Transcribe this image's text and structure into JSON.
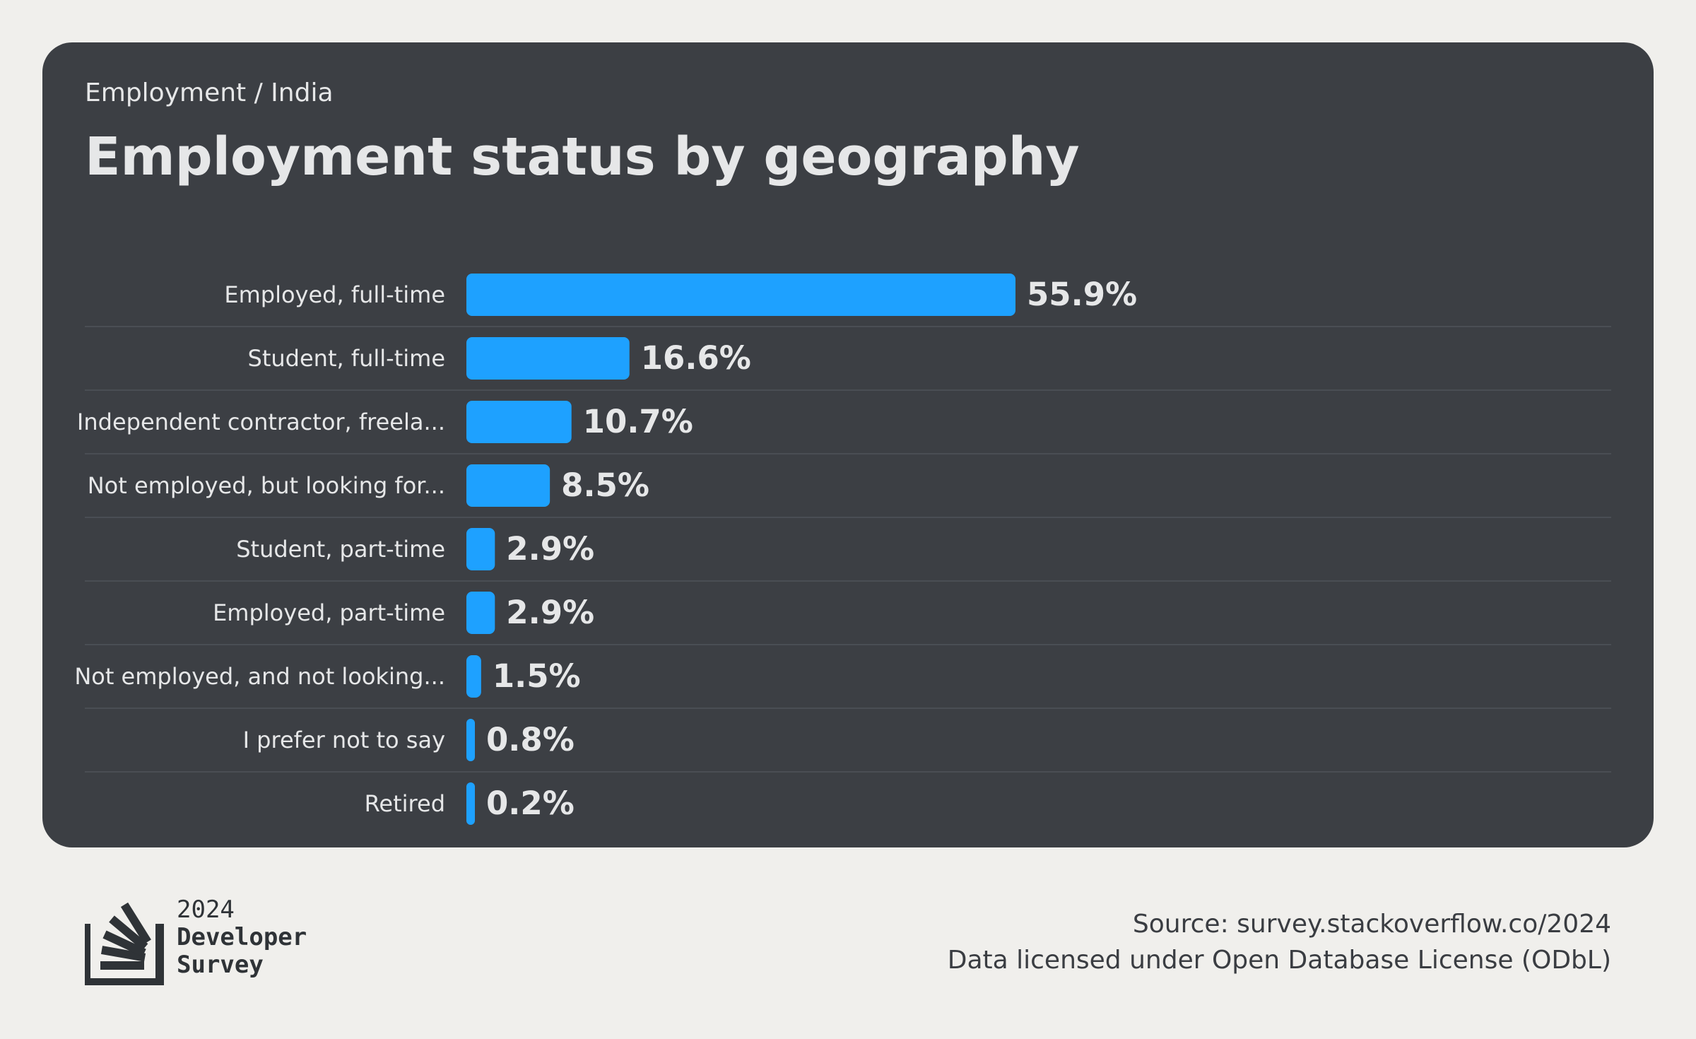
{
  "breadcrumb": "Employment / India",
  "title": "Employment status by geography",
  "chart_data": {
    "type": "bar",
    "orientation": "horizontal",
    "categories": [
      "Employed, full-time",
      "Student, full-time",
      "Independent contractor, freela...",
      "Not employed, but looking for...",
      "Student, part-time",
      "Employed, part-time",
      "Not employed, and not looking...",
      "I prefer not to say",
      "Retired"
    ],
    "values": [
      55.9,
      16.6,
      10.7,
      8.5,
      2.9,
      2.9,
      1.5,
      0.8,
      0.2
    ],
    "value_labels": [
      "55.9%",
      "16.6%",
      "10.7%",
      "8.5%",
      "2.9%",
      "2.9%",
      "1.5%",
      "0.8%",
      "0.2%"
    ],
    "unit": "%",
    "bar_color": "#1ea1ff",
    "grid": false
  },
  "footer": {
    "logo": {
      "icon": "stackoverflow-logo-icon",
      "year": "2024",
      "line1": "Developer",
      "line2": "Survey"
    },
    "source": "Source: survey.stackoverflow.co/2024",
    "license": "Data licensed under Open Database License (ODbL)"
  },
  "colors": {
    "page_bg": "#f0efec",
    "card_bg": "#3c3f44",
    "text_light": "#e6e7e8",
    "separator": "#4a4e54",
    "footer_text": "#3a3d42"
  }
}
